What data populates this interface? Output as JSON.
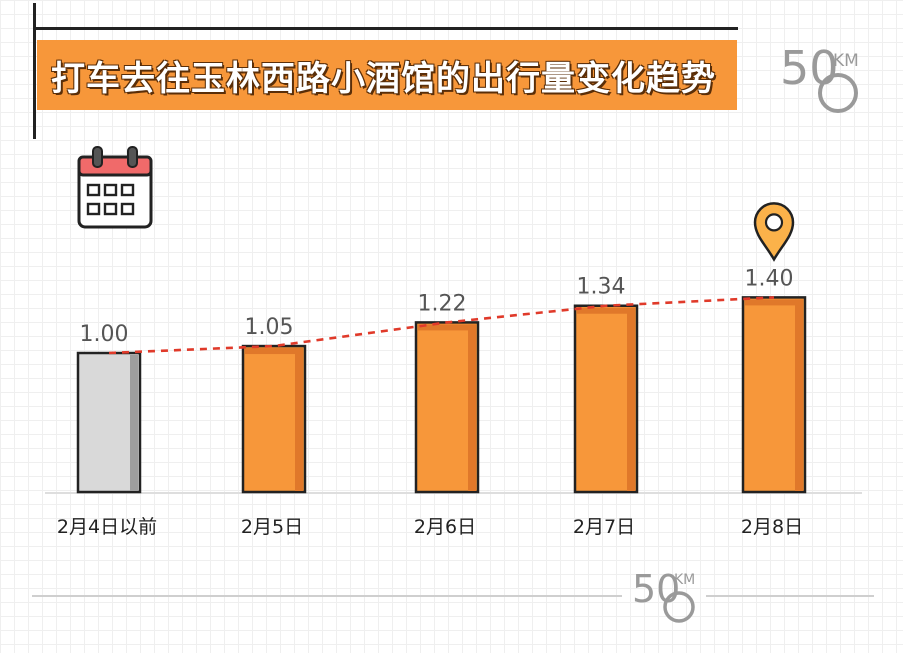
{
  "title": "打车去往玉林西路小酒馆的出行量变化趋势",
  "logo": {
    "number": "50",
    "unit": "KM"
  },
  "icons": {
    "calendar": "calendar-icon",
    "marker": "location-pin-icon"
  },
  "colors": {
    "accent": "#f7973a",
    "accent_dark": "#e0782a",
    "baseline_bar": "#d9d9d9",
    "baseline_bar_shade": "#9e9e9e",
    "trend_line": "#e03a2a",
    "outline": "#222222"
  },
  "chart_data": {
    "type": "bar",
    "categories": [
      "2月4日以前",
      "2月5日",
      "2月6日",
      "2月7日",
      "2月8日"
    ],
    "values": [
      1.0,
      1.05,
      1.22,
      1.34,
      1.4
    ],
    "value_labels": [
      "1.00",
      "1.05",
      "1.22",
      "1.34",
      "1.40"
    ],
    "ylim": [
      0,
      1.5
    ],
    "trend_line": true,
    "highlight_index": 4,
    "grid": false,
    "legend": "none"
  }
}
